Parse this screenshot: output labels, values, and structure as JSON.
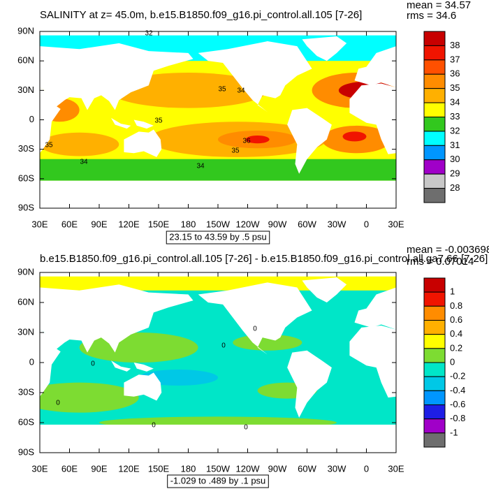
{
  "panels": [
    {
      "title": "SALINITY at z=  45.0m, b.e15.B1850.f09_g16.pi_control.all.105 [7-26]",
      "mean": "mean = 34.57",
      "rms": "rms = 34.6",
      "lat_labels": [
        "90N",
        "60N",
        "30N",
        "0",
        "30S",
        "60S",
        "90S"
      ],
      "lon_labels": [
        "30E",
        "60E",
        "90E",
        "120E",
        "150E",
        "180",
        "150W",
        "120W",
        "90W",
        "60W",
        "30W",
        "0",
        "30E"
      ],
      "colorbar_labels": [
        "38",
        "37",
        "36",
        "35",
        "34",
        "33",
        "32",
        "31",
        "30",
        "29",
        "28"
      ],
      "range_note": "23.15 to 43.59 by .5 psu",
      "contour_labels": [
        "32",
        "35",
        "34",
        "35",
        "36",
        "35",
        "35",
        "34",
        "34"
      ]
    },
    {
      "title": "b.e15.B1850.f09_g16.pi_control.all.105 [7-26] - b.e15.B1850.f09_g16.pi_control.all.ga7.66 [7-26]",
      "mean": "mean = -0.003698",
      "rms": "rms = 0.07014",
      "lat_labels": [
        "90N",
        "60N",
        "30N",
        "0",
        "30S",
        "60S",
        "90S"
      ],
      "lon_labels": [
        "30E",
        "60E",
        "90E",
        "120E",
        "150E",
        "180",
        "150W",
        "120W",
        "90W",
        "60W",
        "30W",
        "0",
        "30E"
      ],
      "colorbar_labels": [
        "1",
        "0.8",
        "0.6",
        "0.4",
        "0.2",
        "0",
        "-0.2",
        "-0.4",
        "-0.6",
        "-0.8",
        "-1"
      ],
      "range_note": "-1.029 to .489 by .1 psu",
      "contour_labels": [
        "0",
        "0",
        "0",
        "0",
        "0",
        "0"
      ]
    }
  ]
}
